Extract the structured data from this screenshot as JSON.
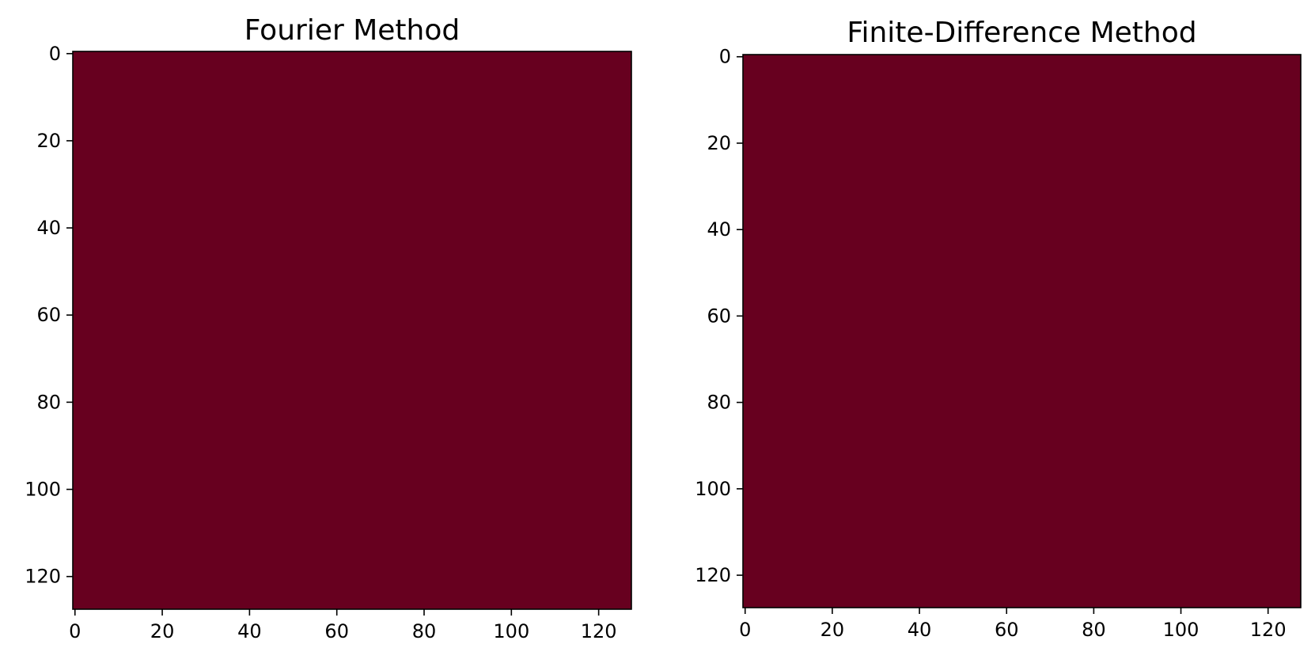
{
  "chart_data": [
    {
      "type": "heatmap",
      "title": "Fourier Method",
      "xlabel": "",
      "ylabel": "",
      "xlim": [
        -0.5,
        127.5
      ],
      "ylim": [
        127.5,
        -0.5
      ],
      "y_axis_inverted": true,
      "grid_size": [
        128,
        128
      ],
      "x_ticks": [
        0,
        20,
        40,
        60,
        80,
        100,
        120
      ],
      "y_ticks": [
        0,
        20,
        40,
        60,
        80,
        100,
        120
      ],
      "fill_color": "#67001f",
      "grid": false
    },
    {
      "type": "heatmap",
      "title": "Finite-Difference Method",
      "xlabel": "",
      "ylabel": "",
      "xlim": [
        -0.5,
        127.5
      ],
      "ylim": [
        127.5,
        -0.5
      ],
      "y_axis_inverted": true,
      "grid_size": [
        128,
        128
      ],
      "x_ticks": [
        0,
        20,
        40,
        60,
        80,
        100,
        120
      ],
      "y_ticks": [
        0,
        20,
        40,
        60,
        80,
        100,
        120
      ],
      "fill_color": "#67001f",
      "grid": false
    }
  ]
}
